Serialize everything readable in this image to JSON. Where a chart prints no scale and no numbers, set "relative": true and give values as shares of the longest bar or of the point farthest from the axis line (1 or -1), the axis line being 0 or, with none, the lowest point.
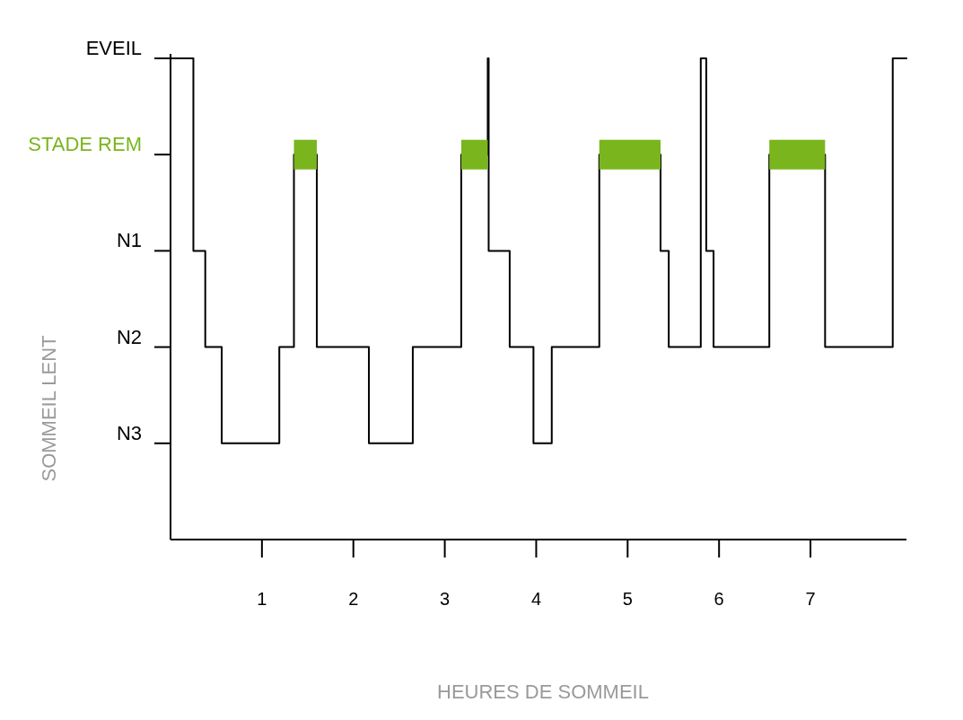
{
  "chart_data": {
    "type": "step",
    "relative": true,
    "xlabel": "HEURES DE SOMMEIL",
    "annotations": [
      "SOMMEIL LENT"
    ],
    "xlim": [
      0,
      8.05
    ],
    "xticks": [
      1,
      2,
      3,
      4,
      5,
      6,
      7
    ],
    "y_categories": [
      "EVEIL",
      "STADE REM",
      "N1",
      "N2",
      "N3"
    ],
    "series": [
      {
        "color": "#000000",
        "x": [
          0,
          0.25,
          0.38,
          0.56,
          1.19,
          1.35,
          1.6,
          2.17,
          2.65,
          3.18,
          3.47,
          3.48,
          3.71,
          3.97,
          4.17,
          4.69,
          5.36,
          5.45,
          5.8,
          5.86,
          5.94,
          6.55,
          7.16,
          7.9,
          8.05
        ],
        "values": [
          1,
          0.6,
          0.4,
          0.2,
          0.4,
          0.8,
          0.4,
          0.2,
          0.4,
          0.8,
          1,
          0.6,
          0.4,
          0.2,
          0.4,
          0.8,
          0.6,
          0.4,
          1,
          0.6,
          0.4,
          0.8,
          0.4,
          1,
          1
        ]
      },
      {
        "type": "line",
        "color": "#7ab51d",
        "x": [
          1.35,
          1.6,
          1.61,
          3.18,
          3.47,
          3.48,
          4.69,
          5.36,
          5.37,
          6.55,
          7.16
        ],
        "values": [
          0.8,
          0.8,
          null,
          0.8,
          0.8,
          null,
          0.8,
          0.8,
          null,
          0.8,
          0.8
        ]
      }
    ]
  }
}
